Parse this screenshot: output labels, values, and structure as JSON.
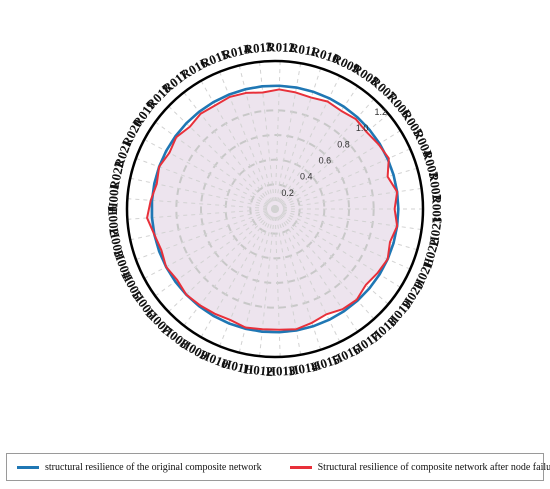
{
  "chart_data": {
    "type": "radar",
    "categories": [
      "R001",
      "R002",
      "R003",
      "R004",
      "R005",
      "R006",
      "R007",
      "R008",
      "R009",
      "R010",
      "R011",
      "R012",
      "R013",
      "R014",
      "R015",
      "R016",
      "R017",
      "R018",
      "R019",
      "R020",
      "R021",
      "R022",
      "H001",
      "H002",
      "H003",
      "H004",
      "H005",
      "H006",
      "H007",
      "H008",
      "H009",
      "H010",
      "H011",
      "H012",
      "H013",
      "H014",
      "H015",
      "H016",
      "H017",
      "H018",
      "H019",
      "H020",
      "H021",
      "H022",
      "H023"
    ],
    "radial_ticks": [
      "0.2",
      "0.4",
      "0.6",
      "0.8",
      "1.0",
      "1.2"
    ],
    "rlim": [
      0,
      1.2
    ],
    "grid": true,
    "series": [
      {
        "name": "structural resilience of the original composite network",
        "color": "#1f77b4",
        "values": [
          1.0,
          1.0,
          1.0,
          1.0,
          1.0,
          1.0,
          1.0,
          1.0,
          1.0,
          1.0,
          1.0,
          1.0,
          1.0,
          1.0,
          1.0,
          1.0,
          1.0,
          1.0,
          1.0,
          1.0,
          1.0,
          1.0,
          1.0,
          1.0,
          1.0,
          1.0,
          1.0,
          1.0,
          1.0,
          1.0,
          1.0,
          1.0,
          1.0,
          1.0,
          1.0,
          1.0,
          1.0,
          1.0,
          1.0,
          1.0,
          1.0,
          1.0,
          1.0,
          1.0,
          1.0
        ]
      },
      {
        "name": "Structural resilience of composite network after node failure",
        "color": "#e8303a",
        "values": [
          0.97,
          1.0,
          0.95,
          1.01,
          0.99,
          0.97,
          0.98,
          0.96,
          0.97,
          0.95,
          0.96,
          0.97,
          0.95,
          0.97,
          0.98,
          0.97,
          0.98,
          0.96,
          0.99,
          0.97,
          1.0,
          0.98,
          1.01,
          1.04,
          1.0,
          0.98,
          1.0,
          0.98,
          1.0,
          0.99,
          0.98,
          0.97,
          0.99,
          0.98,
          0.98,
          0.99,
          0.97,
          0.95,
          0.98,
          0.99,
          0.96,
          0.98,
          1.0,
          0.97,
          1.0
        ]
      }
    ]
  }
}
